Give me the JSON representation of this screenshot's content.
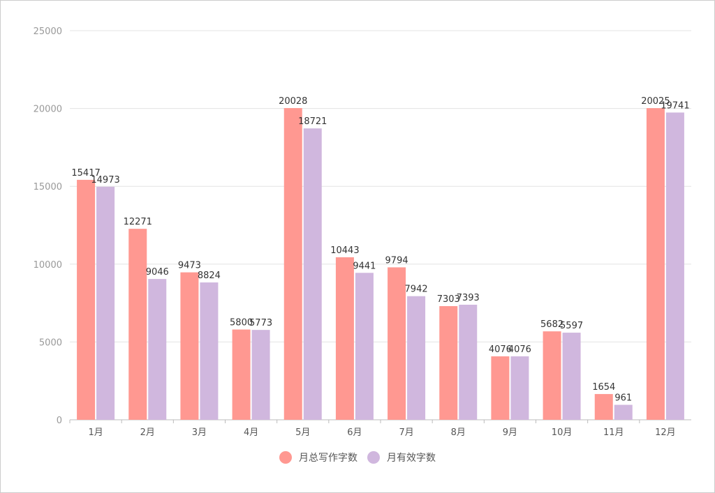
{
  "chart_data": {
    "type": "bar",
    "categories": [
      "1月",
      "2月",
      "3月",
      "4月",
      "5月",
      "6月",
      "7月",
      "8月",
      "9月",
      "10月",
      "11月",
      "12月"
    ],
    "series": [
      {
        "name": "月总写作字数",
        "color": "#ff9891",
        "values": [
          15417,
          12271,
          9473,
          5800,
          20028,
          10443,
          9794,
          7303,
          4076,
          5682,
          1654,
          20025
        ]
      },
      {
        "name": "月有效字数",
        "color": "#d0b7de",
        "values": [
          14973,
          9046,
          8824,
          5773,
          18721,
          9441,
          7942,
          7393,
          4076,
          5597,
          961,
          19741
        ]
      }
    ],
    "ylim": [
      0,
      25000
    ],
    "yticks": [
      0,
      5000,
      10000,
      15000,
      20000,
      25000
    ],
    "grid": true,
    "legend": "bottom"
  }
}
